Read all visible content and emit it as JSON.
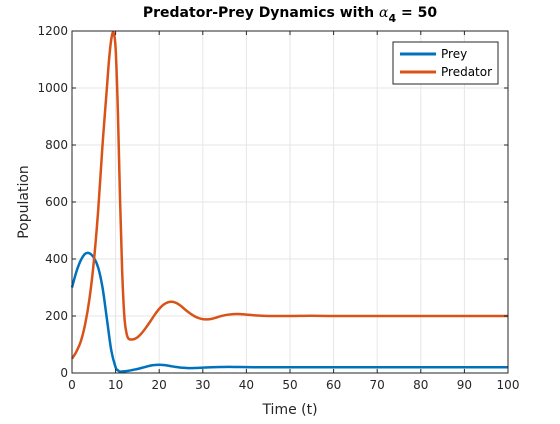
{
  "chart_data": {
    "type": "line",
    "title": "Predator-Prey Dynamics with α4 = 50",
    "title_parts": {
      "main": "Predator-Prey Dynamics with ",
      "symbol": "α",
      "subscript": "4",
      "tail": " = 50"
    },
    "xlabel": "Time (t)",
    "ylabel": "Population",
    "xlim": [
      0,
      100
    ],
    "ylim": [
      0,
      1200
    ],
    "xticks": [
      0,
      10,
      20,
      30,
      40,
      50,
      60,
      70,
      80,
      90,
      100
    ],
    "yticks": [
      0,
      200,
      400,
      600,
      800,
      1000,
      1200
    ],
    "grid": true,
    "legend_position": "top-right",
    "series": [
      {
        "name": "Prey",
        "color": "#0072BD",
        "x": [
          0,
          1,
          2,
          3,
          4,
          5,
          6,
          7,
          8,
          9,
          10,
          10.5,
          11,
          12,
          13,
          14,
          15,
          16,
          17,
          18,
          19,
          20,
          21,
          22,
          23,
          24,
          25,
          26,
          27,
          28,
          29,
          30,
          32,
          34,
          36,
          38,
          40,
          45,
          50,
          55,
          60,
          70,
          80,
          90,
          100
        ],
        "y": [
          300,
          355,
          395,
          418,
          420,
          405,
          370,
          300,
          190,
          80,
          20,
          10,
          5,
          6,
          8,
          11,
          14,
          18,
          22,
          26,
          28,
          29,
          28,
          26,
          23,
          21,
          19,
          18,
          17,
          17.5,
          18,
          19,
          20,
          21,
          21.5,
          21,
          20.5,
          20,
          20,
          20,
          20,
          20,
          20,
          20,
          20
        ]
      },
      {
        "name": "Predator",
        "color": "#D95319",
        "x": [
          0,
          1,
          2,
          3,
          4,
          5,
          6,
          7,
          8,
          8.5,
          9,
          9.5,
          10,
          10.5,
          11,
          11.5,
          12,
          12.5,
          13,
          14,
          15,
          16,
          17,
          18,
          19,
          20,
          21,
          22,
          23,
          24,
          25,
          26,
          27,
          28,
          29,
          30,
          31,
          32,
          33,
          34,
          36,
          38,
          40,
          42,
          45,
          50,
          55,
          60,
          70,
          80,
          90,
          100
        ],
        "y": [
          50,
          75,
          110,
          170,
          260,
          390,
          570,
          800,
          1000,
          1100,
          1170,
          1195,
          1140,
          930,
          620,
          360,
          200,
          140,
          120,
          118,
          125,
          140,
          160,
          182,
          205,
          225,
          240,
          248,
          250,
          245,
          235,
          222,
          210,
          200,
          193,
          189,
          188,
          190,
          194,
          199,
          205,
          207,
          205,
          202,
          200,
          200,
          201,
          200,
          200,
          200,
          200,
          200
        ]
      }
    ]
  }
}
